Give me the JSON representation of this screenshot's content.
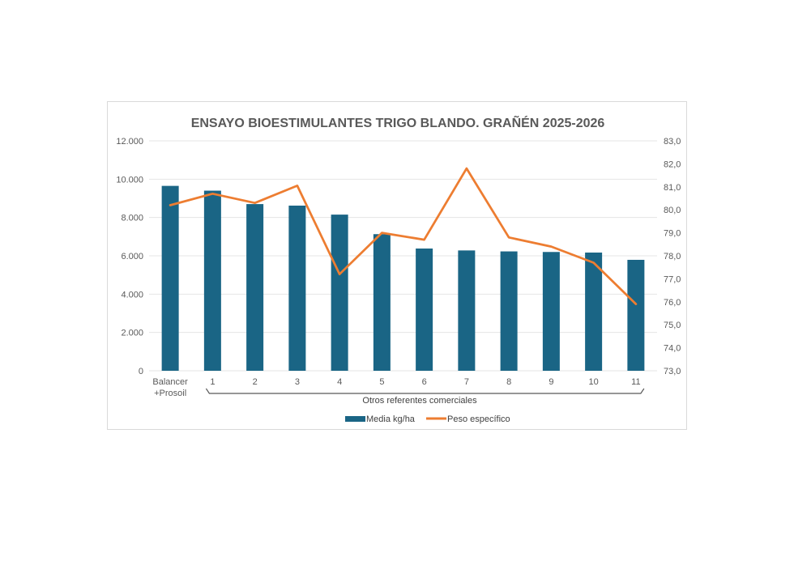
{
  "colors": {
    "bars": "#1a6585",
    "line": "#ed7d31",
    "grid": "#e4e4e4",
    "text": "#595959"
  },
  "chart_data": {
    "type": "bar",
    "title": "ENSAYO BIOESTIMULANTES TRIGO BLANDO. GRAÑÉN 2025-2026",
    "categories": [
      "Balancer +Prosoil",
      "1",
      "2",
      "3",
      "4",
      "5",
      "6",
      "7",
      "8",
      "9",
      "10",
      "11"
    ],
    "category_lines": [
      [
        "Balancer",
        "+Prosoil"
      ],
      [
        "1"
      ],
      [
        "2"
      ],
      [
        "3"
      ],
      [
        "4"
      ],
      [
        "5"
      ],
      [
        "6"
      ],
      [
        "7"
      ],
      [
        "8"
      ],
      [
        "9"
      ],
      [
        "10"
      ],
      [
        "11"
      ]
    ],
    "group_label": "Otros referentes comerciales",
    "series": [
      {
        "name": "Media kg/ha",
        "type": "bar",
        "axis": "left",
        "values": [
          9650,
          9400,
          8700,
          8620,
          8150,
          7130,
          6380,
          6280,
          6230,
          6200,
          6170,
          5790
        ]
      },
      {
        "name": "Peso específico",
        "type": "line",
        "axis": "right",
        "values": [
          80.2,
          80.7,
          80.3,
          81.05,
          77.2,
          79.0,
          78.7,
          81.8,
          78.8,
          78.4,
          77.7,
          75.9
        ]
      }
    ],
    "ylim_left": [
      0,
      12000
    ],
    "yticks_left": [
      "0",
      "2.000",
      "4.000",
      "6.000",
      "8.000",
      "10.000",
      "12.000"
    ],
    "ylim_right": [
      73,
      83
    ],
    "yticks_right": [
      "73,0",
      "74,0",
      "75,0",
      "76,0",
      "77,0",
      "78,0",
      "79,0",
      "80,0",
      "81,0",
      "82,0",
      "83,0"
    ],
    "grid": true,
    "legend_position": "bottom"
  }
}
